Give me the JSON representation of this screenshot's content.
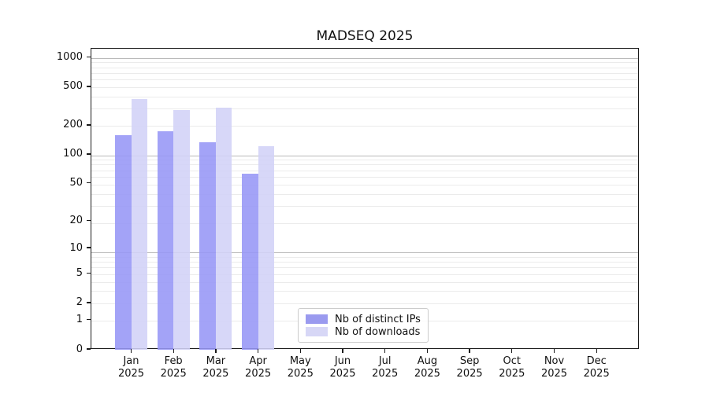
{
  "title": "MADSEQ 2025",
  "chart_data": {
    "type": "bar",
    "title": "MADSEQ 2025",
    "categories": [
      "Jan 2025",
      "Feb 2025",
      "Mar 2025",
      "Apr 2025",
      "May 2025",
      "Jun 2025",
      "Jul 2025",
      "Aug 2025",
      "Sep 2025",
      "Oct 2025",
      "Nov 2025",
      "Dec 2025"
    ],
    "categories_line1": [
      "Jan",
      "Feb",
      "Mar",
      "Apr",
      "May",
      "Jun",
      "Jul",
      "Aug",
      "Sep",
      "Oct",
      "Nov",
      "Dec"
    ],
    "categories_line2": [
      "2025",
      "2025",
      "2025",
      "2025",
      "2025",
      "2025",
      "2025",
      "2025",
      "2025",
      "2025",
      "2025",
      "2025"
    ],
    "series": [
      {
        "name": "Nb of distinct IPs",
        "color": "rgba(150,150,246,0.88)",
        "legend_color": "#9a9aef",
        "values": [
          160,
          174,
          134,
          63,
          null,
          null,
          null,
          null,
          null,
          null,
          null,
          null
        ]
      },
      {
        "name": "Nb of downloads",
        "color": "rgba(210,210,247,0.88)",
        "legend_color": "#d7d7f6",
        "values": [
          380,
          288,
          310,
          124,
          null,
          null,
          null,
          null,
          null,
          null,
          null,
          null
        ]
      }
    ],
    "xlabel": "",
    "ylabel": "",
    "yscale": "log10(value+1)",
    "yticks": [
      1000,
      500,
      200,
      100,
      50,
      20,
      10,
      5,
      2,
      1,
      0
    ],
    "ylim": [
      0,
      1250
    ],
    "grid": "horizontal only; major gridlines at value+1 = 10,100,1000; minor at 2-9 per decade",
    "legend_position": "inside plot, lower center-left",
    "colors": {
      "major_grid": "#b9b9b9",
      "minor_grid": "#ebebeb",
      "axis": "#1a1a1a",
      "background": "#ffffff"
    }
  }
}
